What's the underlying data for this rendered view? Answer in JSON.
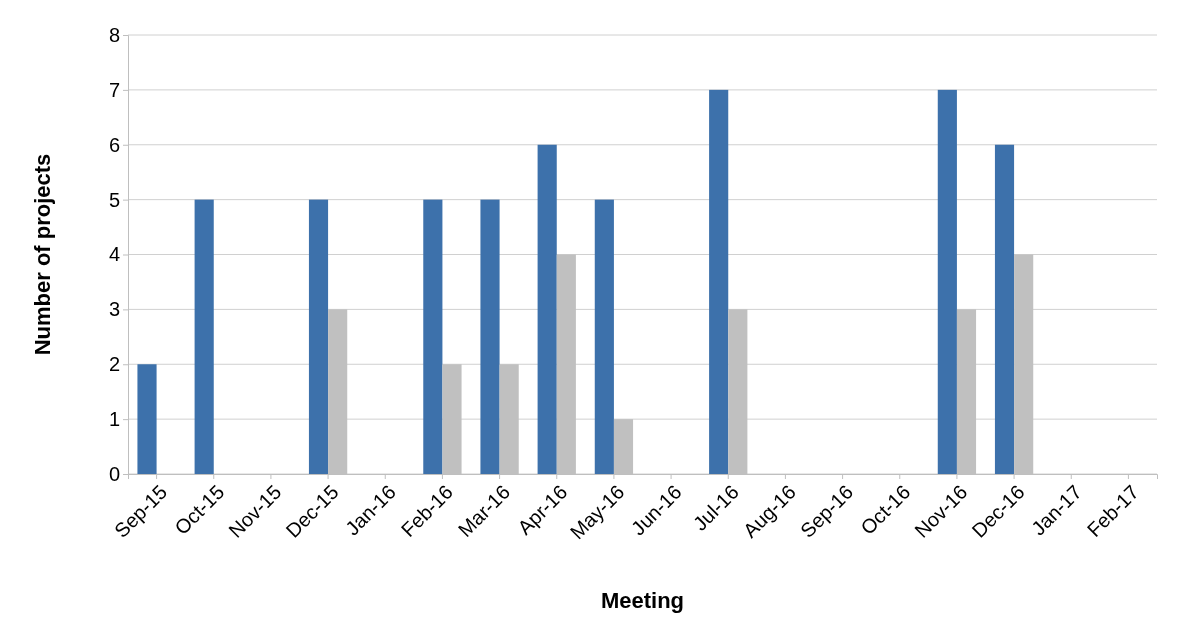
{
  "chart_data": {
    "type": "bar",
    "xlabel": "Meeting",
    "ylabel": "Number of projects",
    "categories": [
      "Sep-15",
      "Oct-15",
      "Nov-15",
      "Dec-15",
      "Jan-16",
      "Feb-16",
      "Mar-16",
      "Apr-16",
      "May-16",
      "Jun-16",
      "Jul-16",
      "Aug-16",
      "Sep-16",
      "Oct-16",
      "Nov-16",
      "Dec-16",
      "Jan-17",
      "Feb-17"
    ],
    "series": [
      {
        "color": "#3d71ab",
        "values": [
          2,
          5,
          null,
          5,
          null,
          5,
          5,
          6,
          5,
          null,
          7,
          null,
          null,
          null,
          7,
          6,
          null,
          null
        ]
      },
      {
        "color": "#c0c0c0",
        "values": [
          null,
          null,
          null,
          3,
          null,
          2,
          2,
          4,
          1,
          null,
          3,
          null,
          null,
          null,
          3,
          4,
          null,
          null
        ]
      }
    ],
    "ylim": [
      0,
      8
    ],
    "yticks": [
      0,
      1,
      2,
      3,
      4,
      5,
      6,
      7,
      8
    ],
    "grid": "y"
  }
}
